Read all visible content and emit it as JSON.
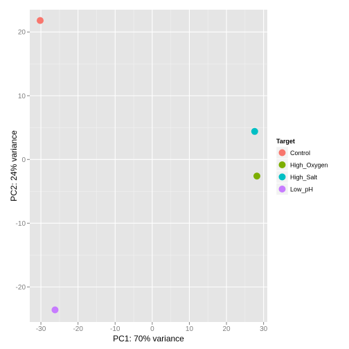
{
  "chart_data": {
    "type": "scatter",
    "title": "",
    "xlabel": "PC1: 70% variance",
    "ylabel": "PC2: 24% variance",
    "xlim": [
      -33,
      31
    ],
    "ylim": [
      -25.5,
      23.5
    ],
    "x_ticks": [
      -30,
      -20,
      -10,
      0,
      10,
      20,
      30
    ],
    "y_ticks": [
      -20,
      -10,
      0,
      10,
      20
    ],
    "grid": true,
    "legend": {
      "title": "Target",
      "position": "right"
    },
    "series": [
      {
        "name": "Control",
        "color": "#F8766D",
        "points": [
          {
            "x": -30.2,
            "y": 21.8
          }
        ]
      },
      {
        "name": "High_Oxygen",
        "color": "#7CAE00",
        "points": [
          {
            "x": 28.2,
            "y": -2.6
          }
        ]
      },
      {
        "name": "High_Salt",
        "color": "#00BFC4",
        "points": [
          {
            "x": 27.6,
            "y": 4.4
          }
        ]
      },
      {
        "name": "Low_pH",
        "color": "#C77CFF",
        "points": [
          {
            "x": -26.2,
            "y": -23.6
          }
        ]
      }
    ]
  }
}
